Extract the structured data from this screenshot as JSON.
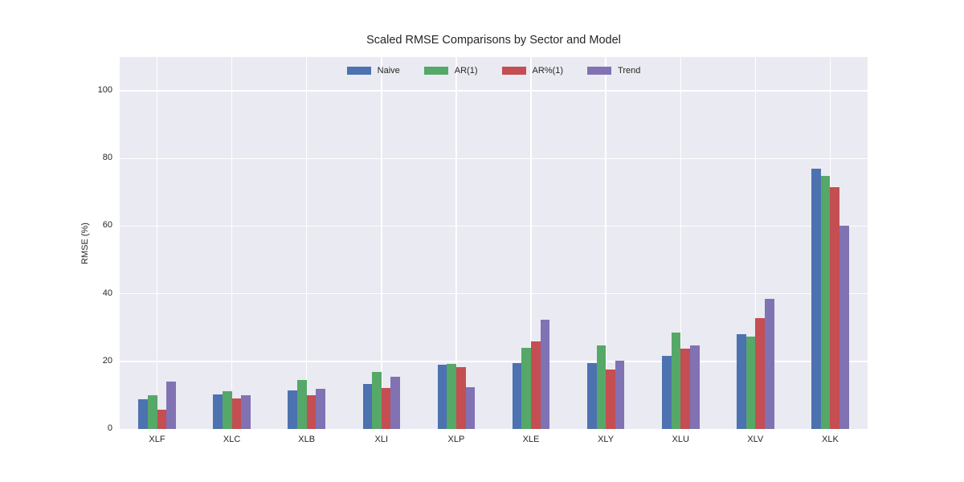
{
  "figure": {
    "title": "Scaled RMSE Comparisons by Sector and Model",
    "ylabel": "RMSE (%)"
  },
  "chart_data": {
    "type": "bar",
    "title": "Scaled RMSE Comparisons by Sector and Model",
    "xlabel": "",
    "ylabel": "RMSE (%)",
    "categories": [
      "XLF",
      "XLC",
      "XLB",
      "XLI",
      "XLP",
      "XLE",
      "XLY",
      "XLU",
      "XLV",
      "XLK"
    ],
    "series": [
      {
        "name": "Naive",
        "color": "#4C72B0",
        "values": [
          8.9,
          10.3,
          11.3,
          13.4,
          18.9,
          19.4,
          19.4,
          21.6,
          28.0,
          77.0
        ]
      },
      {
        "name": "AR(1)",
        "color": "#55A868",
        "values": [
          10.1,
          11.1,
          14.4,
          16.8,
          19.2,
          23.9,
          24.8,
          28.6,
          27.4,
          74.8
        ]
      },
      {
        "name": "AR%(1)",
        "color": "#C44E52",
        "values": [
          5.8,
          9.0,
          10.0,
          12.2,
          18.2,
          25.9,
          17.7,
          23.8,
          32.9,
          71.4
        ]
      },
      {
        "name": "Trend",
        "color": "#8172B3",
        "values": [
          14.0,
          10.1,
          11.8,
          15.5,
          12.4,
          32.3,
          20.1,
          24.8,
          38.6,
          60.2
        ]
      }
    ],
    "ylim": [
      0,
      110
    ],
    "yticks": [
      0,
      20,
      40,
      60,
      80,
      100
    ],
    "grid": true,
    "grid_color": "#FFFFFF",
    "plot_background": "#EAEAF2",
    "legend_position": "top-center",
    "legend_frame": false
  }
}
